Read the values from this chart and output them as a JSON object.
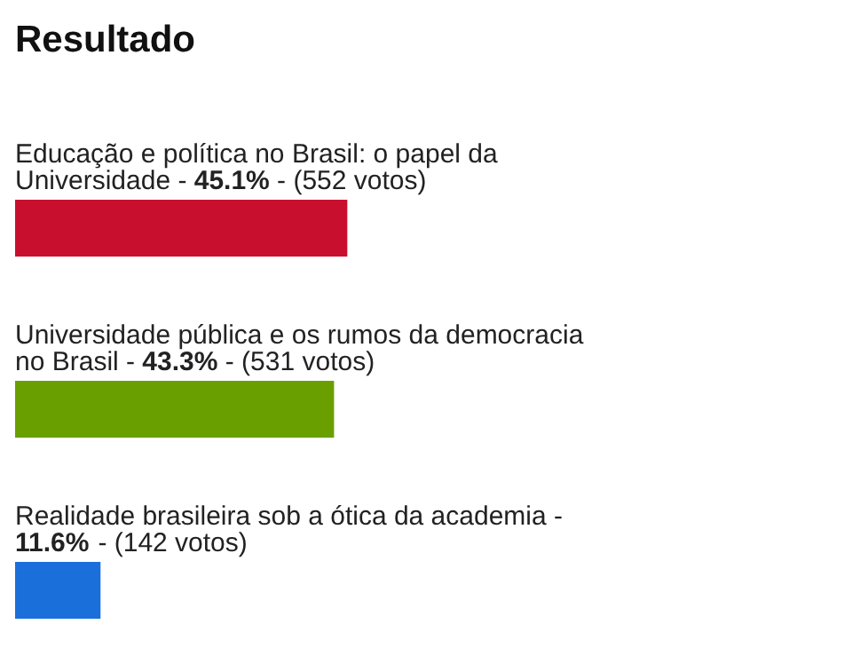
{
  "chart_data": {
    "type": "bar",
    "orientation": "horizontal",
    "title": "Resultado",
    "categories": [
      "Educação e política no Brasil: o papel da Universidade -",
      "Universidade pública e os rumos da democracia no Brasil -",
      "Realidade brasileira sob a ótica da academia -"
    ],
    "values": [
      45.1,
      43.3,
      11.6
    ],
    "colors": [
      "#c8102e",
      "#6a9f00",
      "#1a6fdb"
    ],
    "value_labels": [
      "45.1%",
      "43.3%",
      "11.6%"
    ],
    "annotations": [
      "- (552 votos)",
      "- (531 votos)",
      "- (142 votos)"
    ],
    "grid": false,
    "legend": false
  }
}
